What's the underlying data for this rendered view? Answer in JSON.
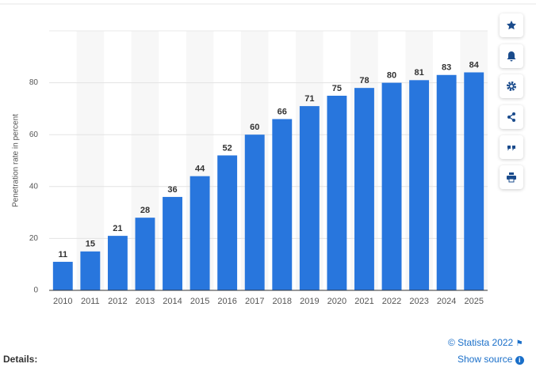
{
  "chart_data": {
    "type": "bar",
    "y_label": "Penetration rate in percent",
    "categories": [
      "2010",
      "2011",
      "2012",
      "2013",
      "2014",
      "2015",
      "2016",
      "2017",
      "2018",
      "2019",
      "2020",
      "2021",
      "2022",
      "2023",
      "2024",
      "2025"
    ],
    "values": [
      11,
      15,
      21,
      28,
      36,
      44,
      52,
      60,
      66,
      71,
      75,
      78,
      80,
      81,
      83,
      84
    ],
    "color": "#2876dd",
    "ylim": [
      0,
      100
    ],
    "yticks": [
      0,
      20,
      40,
      60,
      80
    ],
    "grid": true,
    "band_shading": true
  },
  "footer": {
    "credit": "© Statista 2022",
    "details": "Details:",
    "source": "Show source"
  }
}
